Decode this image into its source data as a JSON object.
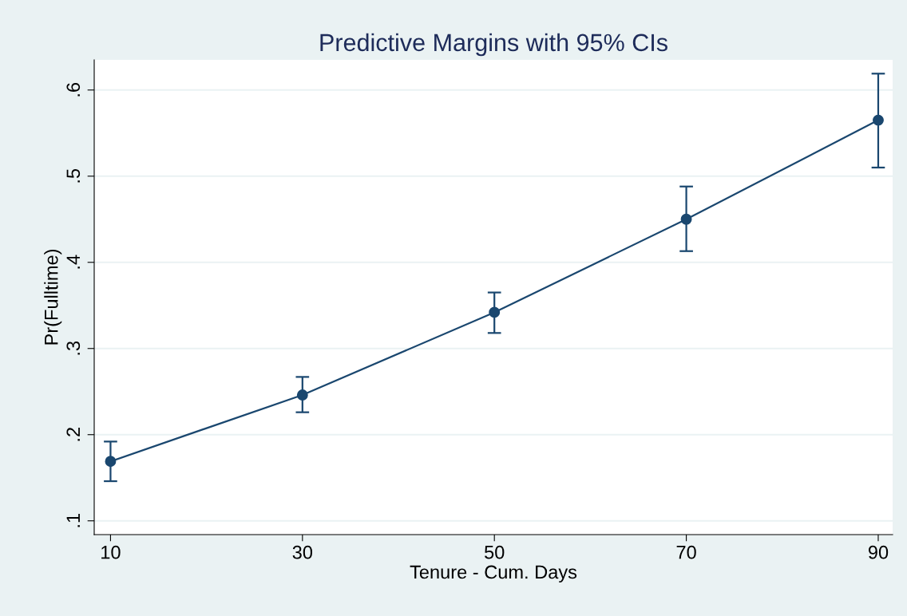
{
  "chart_data": {
    "type": "line",
    "title": "Predictive Margins with 95% CIs",
    "xlabel": "Tenure - Cum. Days",
    "ylabel": "Pr(Fulltime)",
    "x": [
      10,
      30,
      50,
      70,
      90
    ],
    "series": [
      {
        "color": "#1a476f",
        "values": [
          0.169,
          0.246,
          0.342,
          0.45,
          0.565
        ],
        "errors": [
          [
            0.146,
            0.192
          ],
          [
            0.226,
            0.267
          ],
          [
            0.318,
            0.365
          ],
          [
            0.413,
            0.488
          ],
          [
            0.51,
            0.619
          ]
        ]
      }
    ],
    "xlim": [
      8.3,
      91.5
    ],
    "xticks": [
      10,
      30,
      50,
      70,
      90
    ],
    "ylim": [
      0.084,
      0.635
    ],
    "yticks": [
      {
        "value": 0.1,
        "label": ".1"
      },
      {
        "value": 0.2,
        "label": ".2"
      },
      {
        "value": 0.3,
        "label": ".3"
      },
      {
        "value": 0.4,
        "label": ".4"
      },
      {
        "value": 0.5,
        "label": ".5"
      },
      {
        "value": 0.6,
        "label": ".6"
      }
    ],
    "grid": "y",
    "marker": "circle",
    "line_style": "solid"
  }
}
